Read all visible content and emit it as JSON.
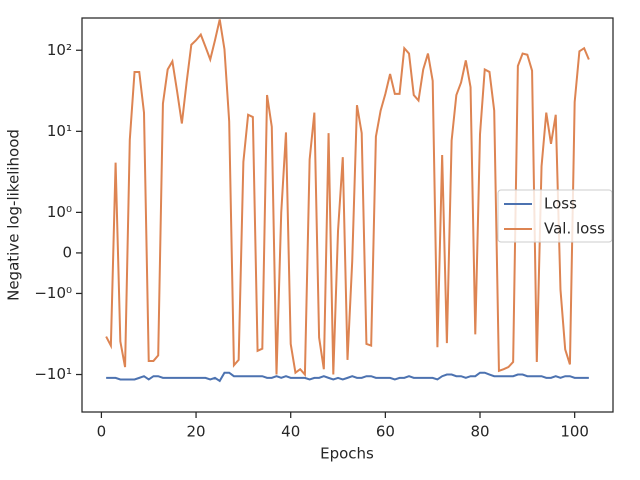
{
  "chart_data": {
    "type": "line",
    "xlabel": "Epochs",
    "ylabel": "Negative log-likelihood",
    "x": [
      1,
      2,
      3,
      4,
      5,
      6,
      7,
      8,
      9,
      10,
      11,
      12,
      13,
      14,
      15,
      16,
      17,
      18,
      19,
      20,
      21,
      22,
      23,
      24,
      25,
      26,
      27,
      28,
      29,
      30,
      31,
      32,
      33,
      34,
      35,
      36,
      37,
      38,
      39,
      40,
      41,
      42,
      43,
      44,
      45,
      46,
      47,
      48,
      49,
      50,
      51,
      52,
      53,
      54,
      55,
      56,
      57,
      58,
      59,
      60,
      61,
      62,
      63,
      64,
      65,
      66,
      67,
      68,
      69,
      70,
      71,
      72,
      73,
      74,
      75,
      76,
      77,
      78,
      79,
      80,
      81,
      82,
      83,
      84,
      85,
      86,
      87,
      88,
      89,
      90,
      91,
      92,
      93,
      94,
      95,
      96,
      97,
      98,
      99,
      100,
      101,
      102,
      103
    ],
    "series": [
      {
        "name": "Loss",
        "color": "#4c72b0",
        "values": [
          -11,
          -11,
          -11,
          -11.5,
          -11.5,
          -11.5,
          -11.5,
          -11,
          -10.5,
          -11.5,
          -10.5,
          -10.5,
          -11,
          -11,
          -11,
          -11,
          -11,
          -11,
          -11,
          -11,
          -11,
          -11,
          -11.5,
          -11,
          -12,
          -9.5,
          -9.5,
          -10.5,
          -10.5,
          -10.5,
          -10.5,
          -10.5,
          -10.5,
          -10.5,
          -11,
          -11,
          -10.5,
          -11,
          -10.5,
          -11,
          -11,
          -11,
          -11,
          -11.5,
          -11,
          -11,
          -10.5,
          -11,
          -11.5,
          -11,
          -11.5,
          -11,
          -10.5,
          -11,
          -11,
          -10.5,
          -10.5,
          -11,
          -11,
          -11,
          -11,
          -11.5,
          -11,
          -11,
          -10.5,
          -11,
          -11,
          -11,
          -11,
          -11,
          -11.5,
          -10.5,
          -10,
          -10,
          -10.5,
          -10.5,
          -11,
          -10.5,
          -10.5,
          -9.5,
          -9.5,
          -10,
          -10.5,
          -10.5,
          -10.5,
          -10.5,
          -10.5,
          -10,
          -10,
          -10.5,
          -10.5,
          -10.5,
          -10.5,
          -11,
          -11,
          -10.5,
          -11,
          -10.5,
          -10.5,
          -11,
          -11,
          -11,
          -11
        ]
      },
      {
        "name": "Val. loss",
        "color": "#dd8452",
        "values": [
          -3.4,
          -4.4,
          4.1,
          -3.9,
          -8.1,
          7.9,
          54,
          54,
          17,
          -6.8,
          -6.8,
          -5.8,
          22,
          58,
          73,
          31,
          12.5,
          40,
          117,
          133,
          156,
          110,
          77,
          133,
          240,
          103,
          13.3,
          -7.7,
          -6.6,
          4.2,
          16,
          15,
          -5.1,
          -4.8,
          28,
          11.4,
          -10,
          1.0,
          9.7,
          -4.2,
          -9.5,
          -8.6,
          -10,
          4.5,
          17,
          -3.5,
          -8.6,
          9.5,
          -10,
          0.55,
          4.8,
          -6.6,
          -0.2,
          21,
          9.5,
          -4.2,
          -4.4,
          8.6,
          18,
          29,
          51,
          29,
          29,
          106,
          91,
          28,
          24,
          58,
          91,
          42,
          -4.6,
          5.1,
          -4.1,
          7.7,
          28,
          40,
          75,
          35,
          -3.2,
          9.2,
          58,
          54,
          18,
          -9,
          -8.6,
          -8.1,
          -7,
          64,
          91,
          88,
          56,
          -7,
          3.7,
          17,
          7,
          16,
          -0.9,
          -4.9,
          -7.5,
          23,
          97,
          106,
          77
        ]
      }
    ],
    "xlim": [
      -4.1,
      108.1
    ],
    "xticks": [
      0,
      20,
      40,
      60,
      80,
      100
    ],
    "ylim": [
      -29,
      250
    ],
    "yscale": "symlog",
    "linthresh": 1,
    "yticks": [
      {
        "value": -10,
        "label": "−10¹"
      },
      {
        "value": -1,
        "label": "−10⁰"
      },
      0,
      {
        "value": 1,
        "label": "10⁰"
      },
      {
        "value": 10,
        "label": "10¹"
      },
      {
        "value": 100,
        "label": "10²"
      }
    ],
    "legend": "right"
  }
}
